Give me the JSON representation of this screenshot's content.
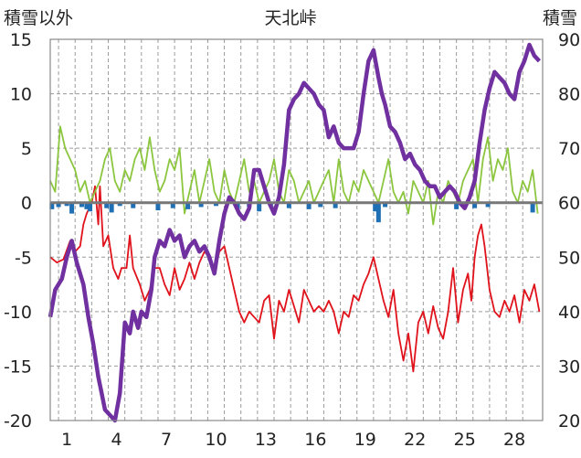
{
  "chart_data": {
    "type": "line",
    "title": "天北峠",
    "left_axis_label": "積雪以外",
    "right_axis_label": "積雪",
    "left_ylim": [
      -20,
      15
    ],
    "right_ylim": [
      20,
      90
    ],
    "left_yticks": [
      "15",
      "10",
      "5",
      "0",
      "-5",
      "-10",
      "-15",
      "-20"
    ],
    "right_yticks": [
      "90",
      "80",
      "70",
      "60",
      "50",
      "40",
      "30",
      "20"
    ],
    "xlim": [
      0,
      29.7
    ],
    "xticks": [
      "1",
      "4",
      "7",
      "10",
      "13",
      "16",
      "19",
      "22",
      "25",
      "28"
    ],
    "grid": "vertical dashed daily, horizontal every 5",
    "series": [
      {
        "axis": "left",
        "color": "#e0121b",
        "x": [
          0.0,
          0.4,
          0.8,
          1.2,
          1.5,
          1.8,
          2.0,
          2.2,
          2.5,
          2.7,
          2.9,
          3.0,
          3.2,
          3.5,
          3.8,
          4.1,
          4.3,
          4.6,
          4.8,
          5.0,
          5.4,
          5.7,
          6.0,
          6.3,
          6.6,
          6.9,
          7.2,
          7.5,
          7.8,
          8.1,
          8.4,
          8.7,
          9.0,
          9.3,
          9.6,
          9.9,
          10.2,
          10.5,
          10.8,
          11.1,
          11.4,
          11.7,
          12.0,
          12.3,
          12.6,
          12.9,
          13.2,
          13.5,
          13.8,
          14.1,
          14.4,
          14.7,
          15.0,
          15.3,
          15.6,
          15.9,
          16.2,
          16.5,
          16.8,
          17.1,
          17.4,
          17.7,
          18.0,
          18.3,
          18.6,
          18.9,
          19.2,
          19.5,
          19.8,
          20.1,
          20.4,
          20.7,
          21.0,
          21.3,
          21.6,
          21.9,
          22.2,
          22.5,
          22.8,
          23.1,
          23.4,
          23.7,
          24.0,
          24.3,
          24.6,
          24.9,
          25.2,
          25.4,
          25.6,
          25.8,
          26.0,
          26.2,
          26.5,
          26.8,
          27.1,
          27.4,
          27.7,
          28.0,
          28.3,
          28.6,
          28.9,
          29.2,
          29.5
        ],
        "y": [
          -5,
          -5.5,
          -5.2,
          -3.5,
          -4.5,
          -4,
          -2,
          -1,
          0,
          1.5,
          -2,
          1.5,
          -4,
          -3,
          -6,
          -7,
          -6,
          -6,
          -3,
          -6,
          -7.5,
          -9,
          -8,
          -6,
          -6,
          -7.5,
          -8.5,
          -6,
          -8,
          -7,
          -5.5,
          -7,
          -5.5,
          -4.5,
          -5,
          -6.5,
          -4.5,
          -4,
          -6,
          -8,
          -10,
          -11,
          -10,
          -10.5,
          -11,
          -9,
          -8.5,
          -12.5,
          -9,
          -10,
          -8,
          -9.5,
          -11,
          -8,
          -9,
          -10,
          -9.5,
          -10,
          -9,
          -10,
          -12,
          -10,
          -10.5,
          -8.5,
          -9,
          -7.5,
          -6.5,
          -5,
          -7,
          -9,
          -10.5,
          -8,
          -12,
          -14.5,
          -12,
          -15.5,
          -11,
          -10,
          -12,
          -9.5,
          -11.5,
          -12.5,
          -10,
          -6,
          -11,
          -8,
          -6.5,
          -9,
          -5,
          -3,
          -2,
          -4,
          -8,
          -10,
          -10.5,
          -9,
          -10,
          -8.5,
          -11,
          -8,
          -9,
          -7.5,
          -10
        ]
      },
      {
        "axis": "left",
        "color": "#8cc63f",
        "x": [
          0.0,
          0.3,
          0.6,
          0.9,
          1.2,
          1.5,
          1.8,
          2.1,
          2.4,
          2.7,
          3.0,
          3.3,
          3.6,
          3.9,
          4.2,
          4.5,
          4.8,
          5.1,
          5.4,
          5.7,
          6.0,
          6.3,
          6.6,
          6.9,
          7.2,
          7.5,
          7.8,
          8.1,
          8.4,
          8.7,
          9.0,
          9.3,
          9.6,
          9.9,
          10.2,
          10.5,
          10.8,
          11.1,
          11.4,
          11.7,
          12.0,
          12.3,
          12.6,
          12.9,
          13.2,
          13.5,
          13.8,
          14.1,
          14.4,
          14.7,
          15.0,
          15.3,
          15.6,
          15.9,
          16.2,
          16.5,
          16.8,
          17.1,
          17.4,
          17.7,
          18.0,
          18.3,
          18.6,
          18.9,
          19.2,
          19.5,
          19.8,
          20.1,
          20.4,
          20.7,
          21.0,
          21.3,
          21.6,
          21.9,
          22.2,
          22.5,
          22.8,
          23.1,
          23.4,
          23.7,
          24.0,
          24.3,
          24.6,
          24.9,
          25.2,
          25.5,
          25.8,
          26.1,
          26.4,
          26.7,
          27.0,
          27.3,
          27.6,
          27.9,
          28.2,
          28.5,
          28.8,
          29.1,
          29.4
        ],
        "y": [
          2,
          1,
          7,
          5,
          4,
          3,
          1,
          2,
          0,
          1,
          2,
          4,
          5,
          2,
          1,
          3,
          2,
          4,
          5,
          3,
          6,
          3,
          1,
          2,
          4,
          3,
          5,
          -1,
          1,
          3,
          0,
          2,
          4,
          1,
          0,
          3,
          1,
          0,
          2,
          4,
          1,
          2,
          0,
          1,
          2,
          4,
          1,
          0,
          3,
          2,
          0,
          1,
          2,
          0,
          1,
          2,
          3,
          0,
          4,
          1,
          0,
          2,
          1,
          3,
          2,
          1,
          0,
          2,
          4,
          1,
          0,
          1,
          -1,
          2,
          1,
          0,
          2,
          -2,
          1,
          0,
          2,
          1,
          0,
          2,
          3,
          4,
          0,
          4,
          6,
          2,
          4,
          3,
          5,
          1,
          0,
          2,
          1,
          3,
          -1
        ]
      },
      {
        "axis": "left",
        "color": "#1f6fb5",
        "type": "bar",
        "x": [
          0.1,
          0.5,
          1.0,
          1.3,
          1.9,
          2.2,
          2.4,
          3.4,
          3.7,
          4.2,
          5.0,
          6.5,
          7.4,
          8.3,
          9.1,
          10.0,
          11.3,
          12.0,
          12.6,
          13.3,
          14.4,
          15.6,
          16.3,
          17.2,
          19.6,
          19.8,
          20.2,
          24.5,
          25.6,
          26.4,
          29.1
        ],
        "y": [
          -0.6,
          -0.4,
          -0.3,
          -1.0,
          -0.4,
          -0.6,
          -0.8,
          -0.5,
          -0.9,
          -0.3,
          -0.5,
          -0.7,
          -0.5,
          -0.6,
          -0.4,
          -0.3,
          -0.6,
          -0.4,
          -0.8,
          -0.3,
          -0.5,
          -0.6,
          -0.4,
          -0.5,
          -0.8,
          -1.8,
          -0.4,
          -0.6,
          -0.5,
          -0.4,
          -0.9
        ]
      },
      {
        "axis": "right",
        "color": "#7030a0",
        "x": [
          0.0,
          0.3,
          0.7,
          1.0,
          1.3,
          1.6,
          2.0,
          2.3,
          2.6,
          2.9,
          3.1,
          3.3,
          3.6,
          3.9,
          4.2,
          4.5,
          4.8,
          5.0,
          5.3,
          5.5,
          5.8,
          6.1,
          6.3,
          6.6,
          6.9,
          7.2,
          7.5,
          7.8,
          8.1,
          8.4,
          8.7,
          9.0,
          9.3,
          9.6,
          9.9,
          10.2,
          10.5,
          10.8,
          11.1,
          11.4,
          11.7,
          12.0,
          12.3,
          12.6,
          12.9,
          13.2,
          13.5,
          13.8,
          14.1,
          14.4,
          14.7,
          15.0,
          15.3,
          15.6,
          15.9,
          16.2,
          16.5,
          16.8,
          17.1,
          17.4,
          17.7,
          18.0,
          18.3,
          18.6,
          18.9,
          19.2,
          19.5,
          19.8,
          20.0,
          20.2,
          20.5,
          20.8,
          21.1,
          21.4,
          21.7,
          22.0,
          22.3,
          22.6,
          22.9,
          23.2,
          23.5,
          23.8,
          24.1,
          24.4,
          24.7,
          25.0,
          25.3,
          25.6,
          25.9,
          26.2,
          26.5,
          26.8,
          27.1,
          27.4,
          27.7,
          28.0,
          28.3,
          28.6,
          28.9,
          29.2,
          29.5
        ],
        "y": [
          39,
          44,
          46,
          50,
          53,
          49,
          45,
          39,
          34,
          28,
          25,
          22,
          21,
          20,
          25,
          38,
          36,
          40,
          37,
          40,
          39,
          44,
          50,
          53,
          52,
          55,
          53,
          54,
          50,
          52,
          53,
          51,
          52,
          50,
          47,
          53,
          58,
          61,
          60,
          58,
          57,
          59,
          66,
          66,
          63,
          60,
          58,
          61,
          67,
          77,
          79,
          80,
          82,
          81,
          80,
          78,
          77,
          72,
          74,
          71,
          70,
          70,
          70,
          73,
          80,
          86,
          88,
          83,
          80,
          78,
          74,
          73,
          71,
          68,
          69,
          67,
          66,
          64,
          63,
          63,
          61,
          62,
          63,
          62,
          60,
          59,
          61,
          64,
          71,
          77,
          81,
          84,
          83,
          82,
          80,
          79,
          84,
          86,
          89,
          87,
          86
        ]
      }
    ]
  }
}
